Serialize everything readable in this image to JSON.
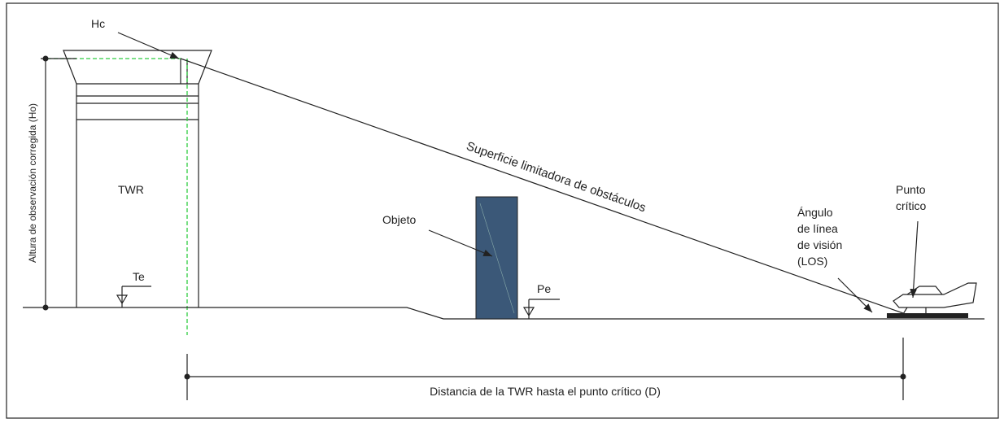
{
  "labels": {
    "hc": "Hc",
    "twr": "TWR",
    "te": "Te",
    "objeto": "Objeto",
    "pe": "Pe",
    "surface": "Superficie limitadora de obstáculos",
    "los": [
      "Ángulo",
      "de línea",
      "de visión",
      "(LOS)"
    ],
    "punto": [
      "Punto",
      "crítico"
    ],
    "ho": "Altura de observación corregida (Ho)",
    "distance": "Distancia de la TWR hasta el punto crítico (D)"
  }
}
